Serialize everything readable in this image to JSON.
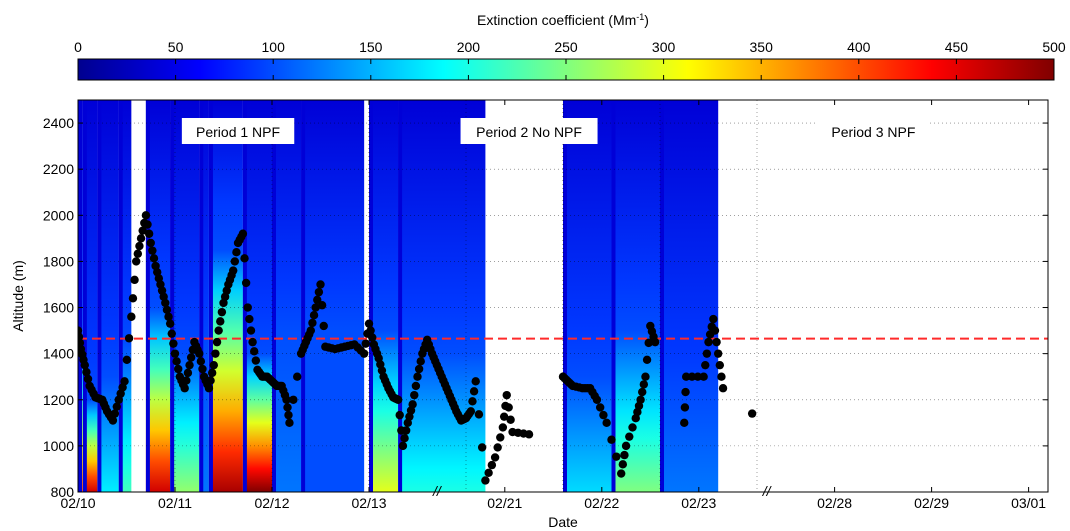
{
  "chart_data": {
    "type": "heatmap",
    "colorbar": {
      "label_main": "Extinction coefficient (Mm",
      "label_sup": "-1",
      "label_close": ")",
      "min": 0,
      "max": 500,
      "ticks": [
        0,
        50,
        100,
        150,
        200,
        250,
        300,
        350,
        400,
        450,
        500
      ],
      "colormap": "jet"
    },
    "ylabel": "Altitude (m)",
    "xlabel": "Date",
    "ylim": [
      800,
      2500
    ],
    "yticks": [
      800,
      1000,
      1200,
      1400,
      1600,
      1800,
      2000,
      2200,
      2400
    ],
    "grid": "dotted",
    "segments": [
      {
        "start": "02/10",
        "end": "02/13",
        "ticks": [
          "02/10",
          "02/11",
          "02/12",
          "02/13"
        ]
      },
      {
        "start": "02/21",
        "end": "02/23",
        "ticks": [
          "02/21",
          "02/22",
          "02/23"
        ]
      },
      {
        "start": "02/28",
        "end": "03/01",
        "ticks": [
          "02/28",
          "02/29",
          "03/01"
        ]
      }
    ],
    "axis_break_symbol": "//",
    "reference_line": {
      "y": 1465,
      "color": "#ff2a2a",
      "style": "dashed"
    },
    "period_labels": [
      {
        "text": "Period 1 NPF",
        "date": "02/11.6"
      },
      {
        "text": "Period 2 No NPF",
        "date": "02/21.7"
      },
      {
        "text": "Period 3 NPF",
        "date": "02/29.4"
      }
    ],
    "cloud_mask_value": 40,
    "extinction_profiles": [
      {
        "from": 0.0,
        "to": 0.05,
        "surface": 400,
        "top_alt": 1450
      },
      {
        "from": 0.05,
        "to": 0.2,
        "surface": 460,
        "top_alt": 1200
      },
      {
        "from": 0.2,
        "to": 0.42,
        "surface": 180,
        "top_alt": 1300
      },
      {
        "from": 0.42,
        "to": 0.55,
        "surface": 220,
        "top_alt": 1450
      },
      {
        "from": 0.7,
        "to": 0.95,
        "surface": 460,
        "top_alt": 1600
      },
      {
        "from": 0.95,
        "to": 1.25,
        "surface": 260,
        "top_alt": 1400
      },
      {
        "from": 1.25,
        "to": 1.35,
        "surface": 120,
        "top_alt": 1400
      },
      {
        "from": 1.35,
        "to": 1.7,
        "surface": 480,
        "top_alt": 1850
      },
      {
        "from": 1.7,
        "to": 2.0,
        "surface": 500,
        "top_alt": 1400
      },
      {
        "from": 2.0,
        "to": 2.3,
        "surface": 120,
        "top_alt": 1500
      },
      {
        "from": 2.3,
        "to": 2.95,
        "surface": 100,
        "top_alt": 1500
      },
      {
        "from": 3.0,
        "to": 3.3,
        "surface": 300,
        "top_alt": 1500
      },
      {
        "from": 3.3,
        "to": 4.2,
        "surface": 200,
        "top_alt": 1400
      },
      {
        "from": 5.0,
        "to": 5.5,
        "surface": 170,
        "top_alt": 1300
      },
      {
        "from": 5.5,
        "to": 6.0,
        "surface": 250,
        "top_alt": 1500
      },
      {
        "from": 6.0,
        "to": 6.6,
        "surface": 120,
        "top_alt": 1200
      }
    ],
    "boundary_layer_height": [
      {
        "x": 0.0,
        "y": 1500
      },
      {
        "x": 0.03,
        "y": 1420
      },
      {
        "x": 0.07,
        "y": 1350
      },
      {
        "x": 0.12,
        "y": 1260
      },
      {
        "x": 0.18,
        "y": 1210
      },
      {
        "x": 0.25,
        "y": 1200
      },
      {
        "x": 0.3,
        "y": 1150
      },
      {
        "x": 0.36,
        "y": 1110
      },
      {
        "x": 0.42,
        "y": 1200
      },
      {
        "x": 0.48,
        "y": 1280
      },
      {
        "x": 0.55,
        "y": 1560
      },
      {
        "x": 0.6,
        "y": 1800
      },
      {
        "x": 0.65,
        "y": 1900
      },
      {
        "x": 0.7,
        "y": 2000
      },
      {
        "x": 0.75,
        "y": 1880
      },
      {
        "x": 0.8,
        "y": 1780
      },
      {
        "x": 0.85,
        "y": 1700
      },
      {
        "x": 0.9,
        "y": 1620
      },
      {
        "x": 0.95,
        "y": 1530
      },
      {
        "x": 1.0,
        "y": 1400
      },
      {
        "x": 1.05,
        "y": 1300
      },
      {
        "x": 1.1,
        "y": 1250
      },
      {
        "x": 1.15,
        "y": 1350
      },
      {
        "x": 1.2,
        "y": 1450
      },
      {
        "x": 1.25,
        "y": 1400
      },
      {
        "x": 1.3,
        "y": 1300
      },
      {
        "x": 1.35,
        "y": 1250
      },
      {
        "x": 1.4,
        "y": 1350
      },
      {
        "x": 1.45,
        "y": 1500
      },
      {
        "x": 1.5,
        "y": 1620
      },
      {
        "x": 1.55,
        "y": 1700
      },
      {
        "x": 1.6,
        "y": 1760
      },
      {
        "x": 1.65,
        "y": 1880
      },
      {
        "x": 1.7,
        "y": 1920
      },
      {
        "x": 1.75,
        "y": 1600
      },
      {
        "x": 1.8,
        "y": 1450
      },
      {
        "x": 1.85,
        "y": 1330
      },
      {
        "x": 1.9,
        "y": 1300
      },
      {
        "x": 1.95,
        "y": 1300
      },
      {
        "x": 2.0,
        "y": 1280
      },
      {
        "x": 2.05,
        "y": 1260
      },
      {
        "x": 2.1,
        "y": 1260
      },
      {
        "x": 2.15,
        "y": 1200
      },
      {
        "x": 2.18,
        "y": 1100
      },
      {
        "x": 2.3,
        "y": 1400
      },
      {
        "x": 2.35,
        "y": 1450
      },
      {
        "x": 2.4,
        "y": 1500
      },
      {
        "x": 2.45,
        "y": 1600
      },
      {
        "x": 2.5,
        "y": 1700
      },
      {
        "x": 2.55,
        "y": 1430
      },
      {
        "x": 2.65,
        "y": 1420
      },
      {
        "x": 2.75,
        "y": 1430
      },
      {
        "x": 2.85,
        "y": 1440
      },
      {
        "x": 2.95,
        "y": 1400
      },
      {
        "x": 3.0,
        "y": 1530
      },
      {
        "x": 3.05,
        "y": 1440
      },
      {
        "x": 3.1,
        "y": 1380
      },
      {
        "x": 3.15,
        "y": 1300
      },
      {
        "x": 3.2,
        "y": 1250
      },
      {
        "x": 3.25,
        "y": 1210
      },
      {
        "x": 3.3,
        "y": 1200
      },
      {
        "x": 3.35,
        "y": 1000
      },
      {
        "x": 3.4,
        "y": 1100
      },
      {
        "x": 3.45,
        "y": 1180
      },
      {
        "x": 3.5,
        "y": 1300
      },
      {
        "x": 3.55,
        "y": 1400
      },
      {
        "x": 3.6,
        "y": 1460
      },
      {
        "x": 3.65,
        "y": 1400
      },
      {
        "x": 3.7,
        "y": 1350
      },
      {
        "x": 3.75,
        "y": 1300
      },
      {
        "x": 3.8,
        "y": 1250
      },
      {
        "x": 3.85,
        "y": 1200
      },
      {
        "x": 3.9,
        "y": 1150
      },
      {
        "x": 3.95,
        "y": 1110
      },
      {
        "x": 4.0,
        "y": 1120
      },
      {
        "x": 4.05,
        "y": 1150
      },
      {
        "x": 4.1,
        "y": 1280
      },
      {
        "x": 4.2,
        "y": 850
      },
      {
        "x": 4.3,
        "y": 950
      },
      {
        "x": 4.38,
        "y": 1080
      },
      {
        "x": 4.42,
        "y": 1220
      },
      {
        "x": 4.48,
        "y": 1060
      },
      {
        "x": 4.65,
        "y": 1050
      },
      {
        "x": 5.0,
        "y": 1300
      },
      {
        "x": 5.05,
        "y": 1280
      },
      {
        "x": 5.1,
        "y": 1260
      },
      {
        "x": 5.2,
        "y": 1250
      },
      {
        "x": 5.28,
        "y": 1250
      },
      {
        "x": 5.35,
        "y": 1200
      },
      {
        "x": 5.45,
        "y": 1100
      },
      {
        "x": 5.6,
        "y": 880
      },
      {
        "x": 5.65,
        "y": 1000
      },
      {
        "x": 5.75,
        "y": 1120
      },
      {
        "x": 5.8,
        "y": 1200
      },
      {
        "x": 5.85,
        "y": 1300
      },
      {
        "x": 5.9,
        "y": 1520
      },
      {
        "x": 5.95,
        "y": 1450
      },
      {
        "x": 6.25,
        "y": 1100
      },
      {
        "x": 6.27,
        "y": 1300
      },
      {
        "x": 6.45,
        "y": 1300
      },
      {
        "x": 6.5,
        "y": 1450
      },
      {
        "x": 6.55,
        "y": 1550
      },
      {
        "x": 6.6,
        "y": 1400
      },
      {
        "x": 6.65,
        "y": 1250
      },
      {
        "x": 6.95,
        "y": 1140
      }
    ]
  }
}
